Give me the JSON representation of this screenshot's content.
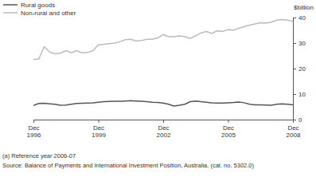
{
  "chart_data": {
    "type": "line",
    "y_label": "$billion",
    "categories": [
      "Dec 1996",
      null,
      null,
      null,
      null,
      null,
      null,
      null,
      null,
      null,
      null,
      null,
      "Dec 1999",
      null,
      null,
      null,
      null,
      null,
      null,
      null,
      null,
      null,
      null,
      null,
      "Dec 2002",
      null,
      null,
      null,
      null,
      null,
      null,
      null,
      null,
      null,
      null,
      null,
      "Dec 2005",
      null,
      null,
      null,
      null,
      null,
      null,
      null,
      null,
      null,
      null,
      null,
      "Dec 2008"
    ],
    "series": [
      {
        "name": "Rural goods",
        "color": "#555555",
        "values": [
          5.5,
          6.3,
          6.4,
          6.2,
          6,
          5.6,
          5.7,
          6,
          6.3,
          6.4,
          6.5,
          6.6,
          6.8,
          7,
          7.1,
          7.2,
          7.2,
          7.3,
          7.4,
          7.3,
          7.2,
          7,
          6.8,
          6.7,
          6.5,
          6,
          5.3,
          5.6,
          6,
          7,
          7.3,
          7,
          6.8,
          6.6,
          6.5,
          6.5,
          6.6,
          6.7,
          6.9,
          6.6,
          6,
          5.8,
          5.8,
          5.7,
          5.6,
          6,
          6.2,
          6,
          5.8
        ]
      },
      {
        "name": "Non-rural and other",
        "color": "#bbbbbb",
        "values": [
          23.5,
          23.8,
          28.5,
          26.5,
          25.8,
          26,
          27,
          26.2,
          27,
          26.2,
          26.3,
          27,
          29.3,
          29.5,
          29.8,
          30,
          30.5,
          31.3,
          31.5,
          30.8,
          31,
          31.5,
          31.5,
          32,
          33.3,
          32.5,
          32.5,
          32.8,
          32.5,
          31.8,
          32.8,
          34,
          34.5,
          33.8,
          34.8,
          34.5,
          35.3,
          35,
          35.8,
          36.5,
          37,
          37.5,
          38,
          37.8,
          38.2,
          39,
          39.2,
          39,
          38.5
        ]
      }
    ],
    "ylim": [
      0,
      40
    ],
    "yticks": [
      0,
      10,
      20,
      30,
      40
    ],
    "grid": false,
    "legend": "upper left",
    "annotations": [
      "(a) Reference year 2006-07",
      "Source: Balance of Payments and International Investment Position, Australia, (cat. no. 5302.0)"
    ]
  }
}
